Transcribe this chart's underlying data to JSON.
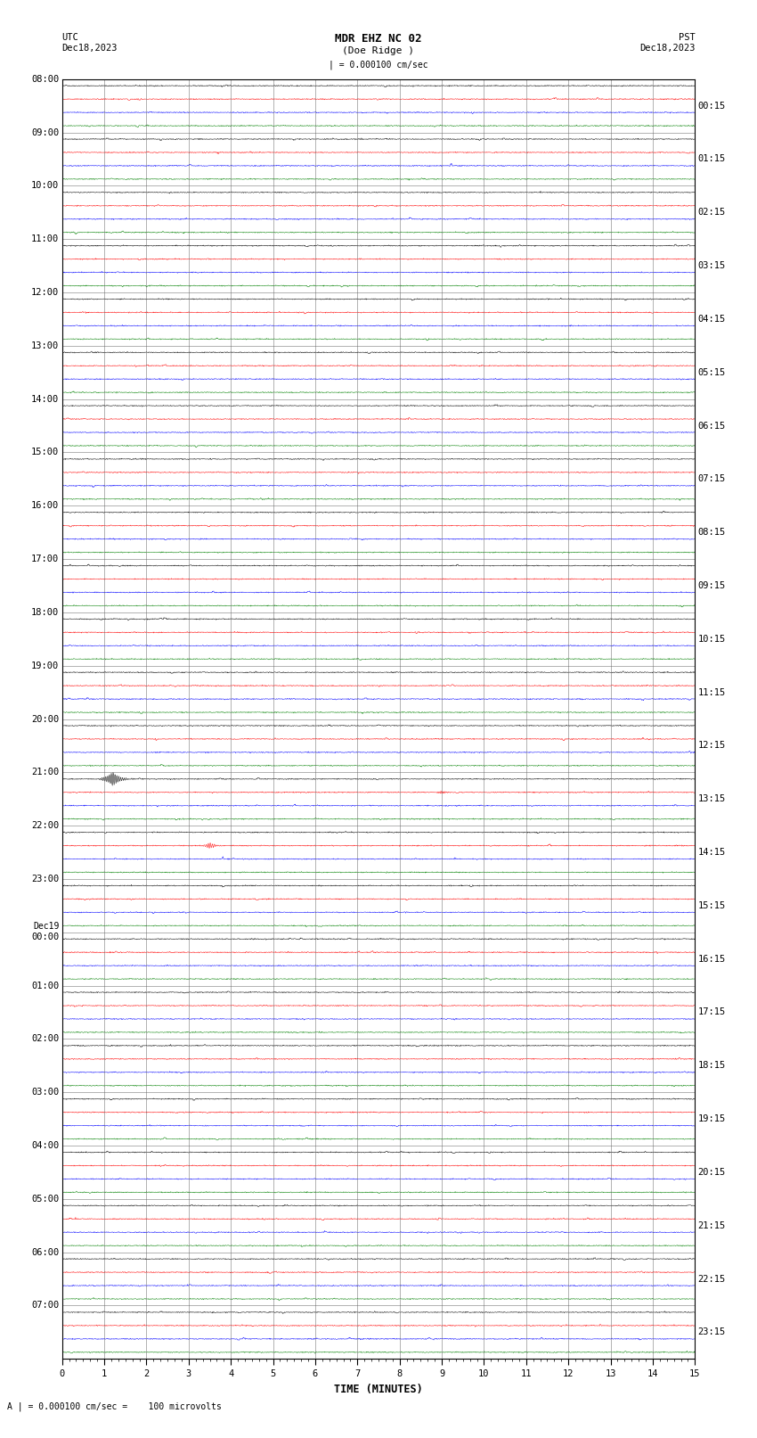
{
  "title_line1": "MDR EHZ NC 02",
  "title_line2": "(Doe Ridge )",
  "scale_label": "| = 0.000100 cm/sec",
  "utc_label": "UTC\nDec18,2023",
  "pst_label": "PST\nDec18,2023",
  "bottom_label": "A | = 0.000100 cm/sec =    100 microvolts",
  "xlabel": "TIME (MINUTES)",
  "left_times": [
    "08:00",
    "09:00",
    "10:00",
    "11:00",
    "12:00",
    "13:00",
    "14:00",
    "15:00",
    "16:00",
    "17:00",
    "18:00",
    "19:00",
    "20:00",
    "21:00",
    "22:00",
    "23:00",
    "Dec19\n00:00",
    "01:00",
    "02:00",
    "03:00",
    "04:00",
    "05:00",
    "06:00",
    "07:00"
  ],
  "right_times": [
    "00:15",
    "01:15",
    "02:15",
    "03:15",
    "04:15",
    "05:15",
    "06:15",
    "07:15",
    "08:15",
    "09:15",
    "10:15",
    "11:15",
    "12:15",
    "13:15",
    "14:15",
    "15:15",
    "16:15",
    "17:15",
    "18:15",
    "19:15",
    "20:15",
    "21:15",
    "22:15",
    "23:15"
  ],
  "colors": [
    "black",
    "red",
    "blue",
    "green"
  ],
  "n_rows": 24,
  "traces_per_row": 4,
  "x_min": 0,
  "x_max": 15,
  "noise_scale": 0.018,
  "bg_color": "#ffffff",
  "grid_color": "#888888",
  "label_fontsize": 7.5,
  "title_fontsize": 9
}
